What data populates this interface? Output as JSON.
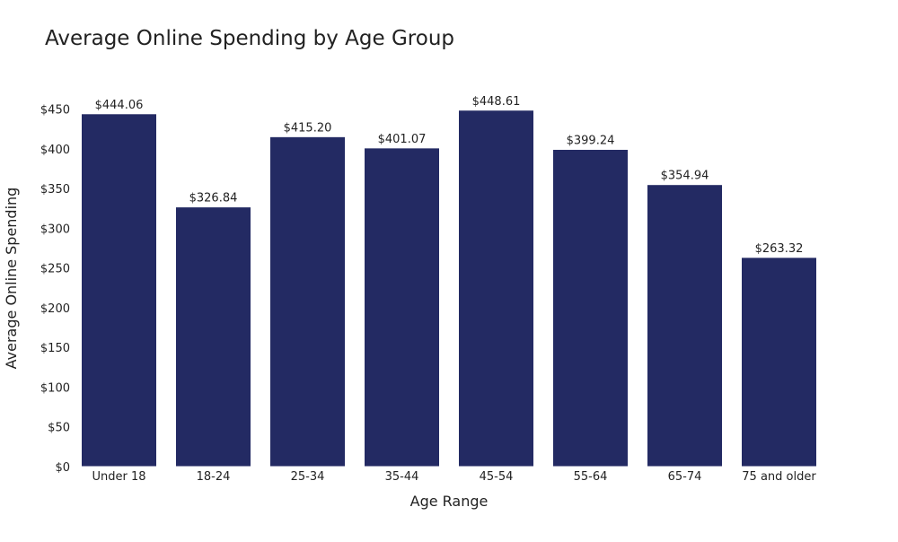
{
  "chart_data": {
    "type": "bar",
    "title": "Average Online Spending by Age Group",
    "xlabel": "Age Range",
    "ylabel": "Average Online Spending",
    "categories": [
      "Under 18",
      "18-24",
      "25-34",
      "35-44",
      "45-54",
      "55-64",
      "65-74",
      "75 and older"
    ],
    "values": [
      444.06,
      326.84,
      415.2,
      401.07,
      448.61,
      399.24,
      354.94,
      263.32
    ],
    "data_labels": [
      "$444.06",
      "$326.84",
      "$415.20",
      "$401.07",
      "$448.61",
      "$399.24",
      "$354.94",
      "$263.32"
    ],
    "ylim": [
      0,
      460
    ],
    "yticks": [
      0,
      50,
      100,
      150,
      200,
      250,
      300,
      350,
      400,
      450
    ],
    "ytick_labels": [
      "$0",
      "$50",
      "$100",
      "$150",
      "$200",
      "$250",
      "$300",
      "$350",
      "$400",
      "$450"
    ],
    "grid": false,
    "legend": "none",
    "bar_color": "#232a63"
  }
}
